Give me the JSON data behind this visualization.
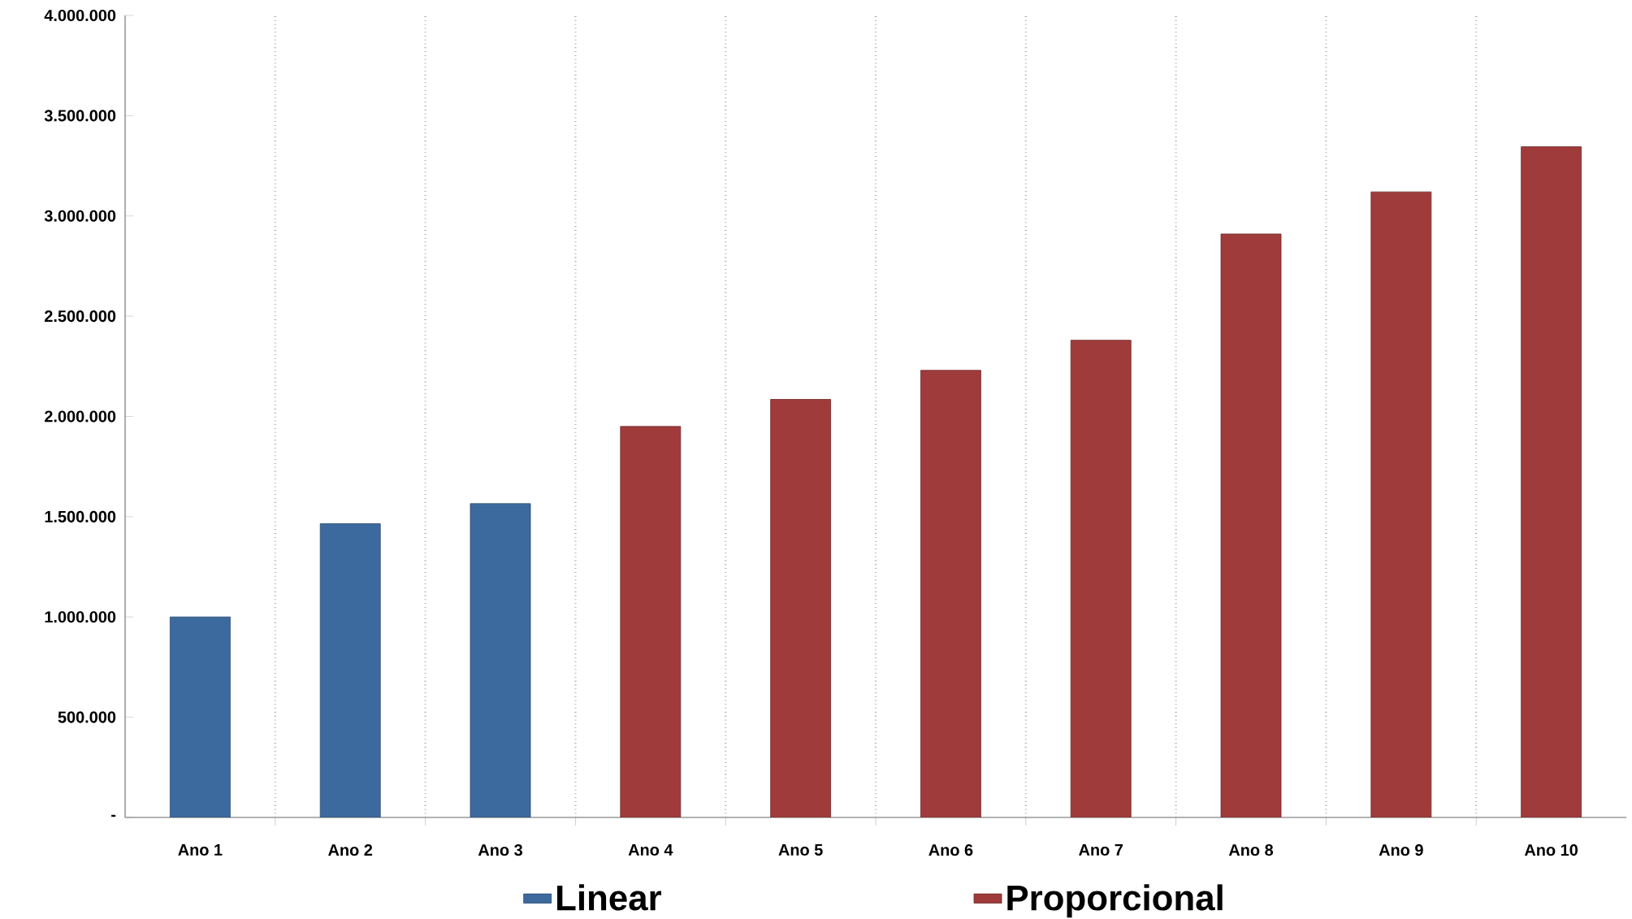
{
  "chart_data": {
    "type": "bar",
    "categories": [
      "Ano 1",
      "Ano 2",
      "Ano 3",
      "Ano 4",
      "Ano 5",
      "Ano 6",
      "Ano 7",
      "Ano 8",
      "Ano 9",
      "Ano 10"
    ],
    "series": [
      {
        "name": "Linear",
        "color": "#3d6a9e",
        "values": [
          1000000,
          1465000,
          1565000,
          null,
          null,
          null,
          null,
          null,
          null,
          null
        ]
      },
      {
        "name": "Proporcional",
        "color": "#a03b3b",
        "values": [
          null,
          null,
          null,
          1950000,
          2085000,
          2230000,
          2380000,
          2910000,
          3120000,
          3345000
        ]
      }
    ],
    "ylim": [
      0,
      4000000
    ],
    "yticks": [
      {
        "value": 0,
        "label": "-"
      },
      {
        "value": 500000,
        "label": "500.000"
      },
      {
        "value": 1000000,
        "label": "1.000.000"
      },
      {
        "value": 1500000,
        "label": "1.500.000"
      },
      {
        "value": 2000000,
        "label": "2.000.000"
      },
      {
        "value": 2500000,
        "label": "2.500.000"
      },
      {
        "value": 3000000,
        "label": "3.000.000"
      },
      {
        "value": 3500000,
        "label": "3.500.000"
      },
      {
        "value": 4000000,
        "label": "4.000.000"
      }
    ],
    "grid": "x",
    "legend": "bottom"
  }
}
